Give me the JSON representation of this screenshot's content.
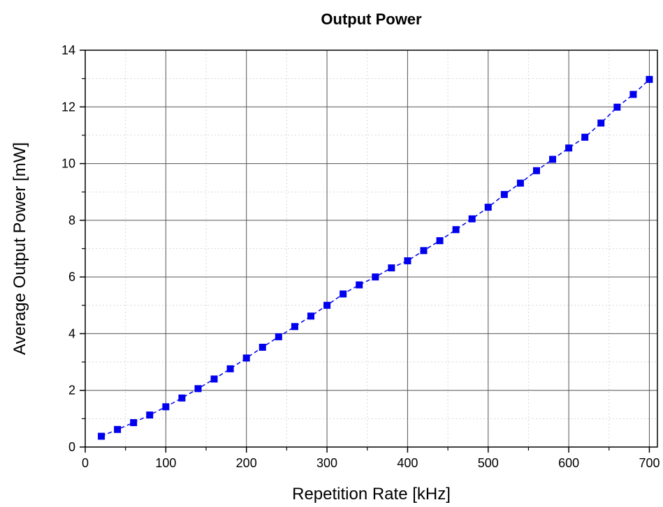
{
  "chart_data": {
    "type": "line",
    "title": "Output Power",
    "xlabel": "Repetition Rate [kHz]",
    "ylabel": "Average Output Power [mW]",
    "xlim": [
      0,
      710
    ],
    "ylim": [
      0,
      14
    ],
    "x_ticks": [
      0,
      100,
      200,
      300,
      400,
      500,
      600,
      700
    ],
    "y_ticks": [
      0,
      2,
      4,
      6,
      8,
      10,
      12,
      14
    ],
    "grid": true,
    "legend": "none",
    "series": [
      {
        "color": "#0000ee",
        "line_style": "dashed",
        "marker": "square",
        "x": [
          20,
          40,
          60,
          80,
          100,
          120,
          140,
          160,
          180,
          200,
          220,
          240,
          260,
          280,
          300,
          320,
          340,
          360,
          380,
          400,
          420,
          440,
          460,
          480,
          500,
          520,
          540,
          560,
          580,
          600,
          620,
          640,
          660,
          680,
          700
        ],
        "y": [
          0.38,
          0.62,
          0.86,
          1.13,
          1.42,
          1.73,
          2.06,
          2.4,
          2.76,
          3.14,
          3.52,
          3.89,
          4.25,
          4.62,
          5.0,
          5.4,
          5.72,
          6.0,
          6.32,
          6.57,
          6.93,
          7.28,
          7.67,
          8.05,
          8.46,
          8.91,
          9.31,
          9.75,
          10.15,
          10.55,
          10.93,
          11.43,
          11.99,
          12.44,
          12.97
        ]
      }
    ]
  }
}
